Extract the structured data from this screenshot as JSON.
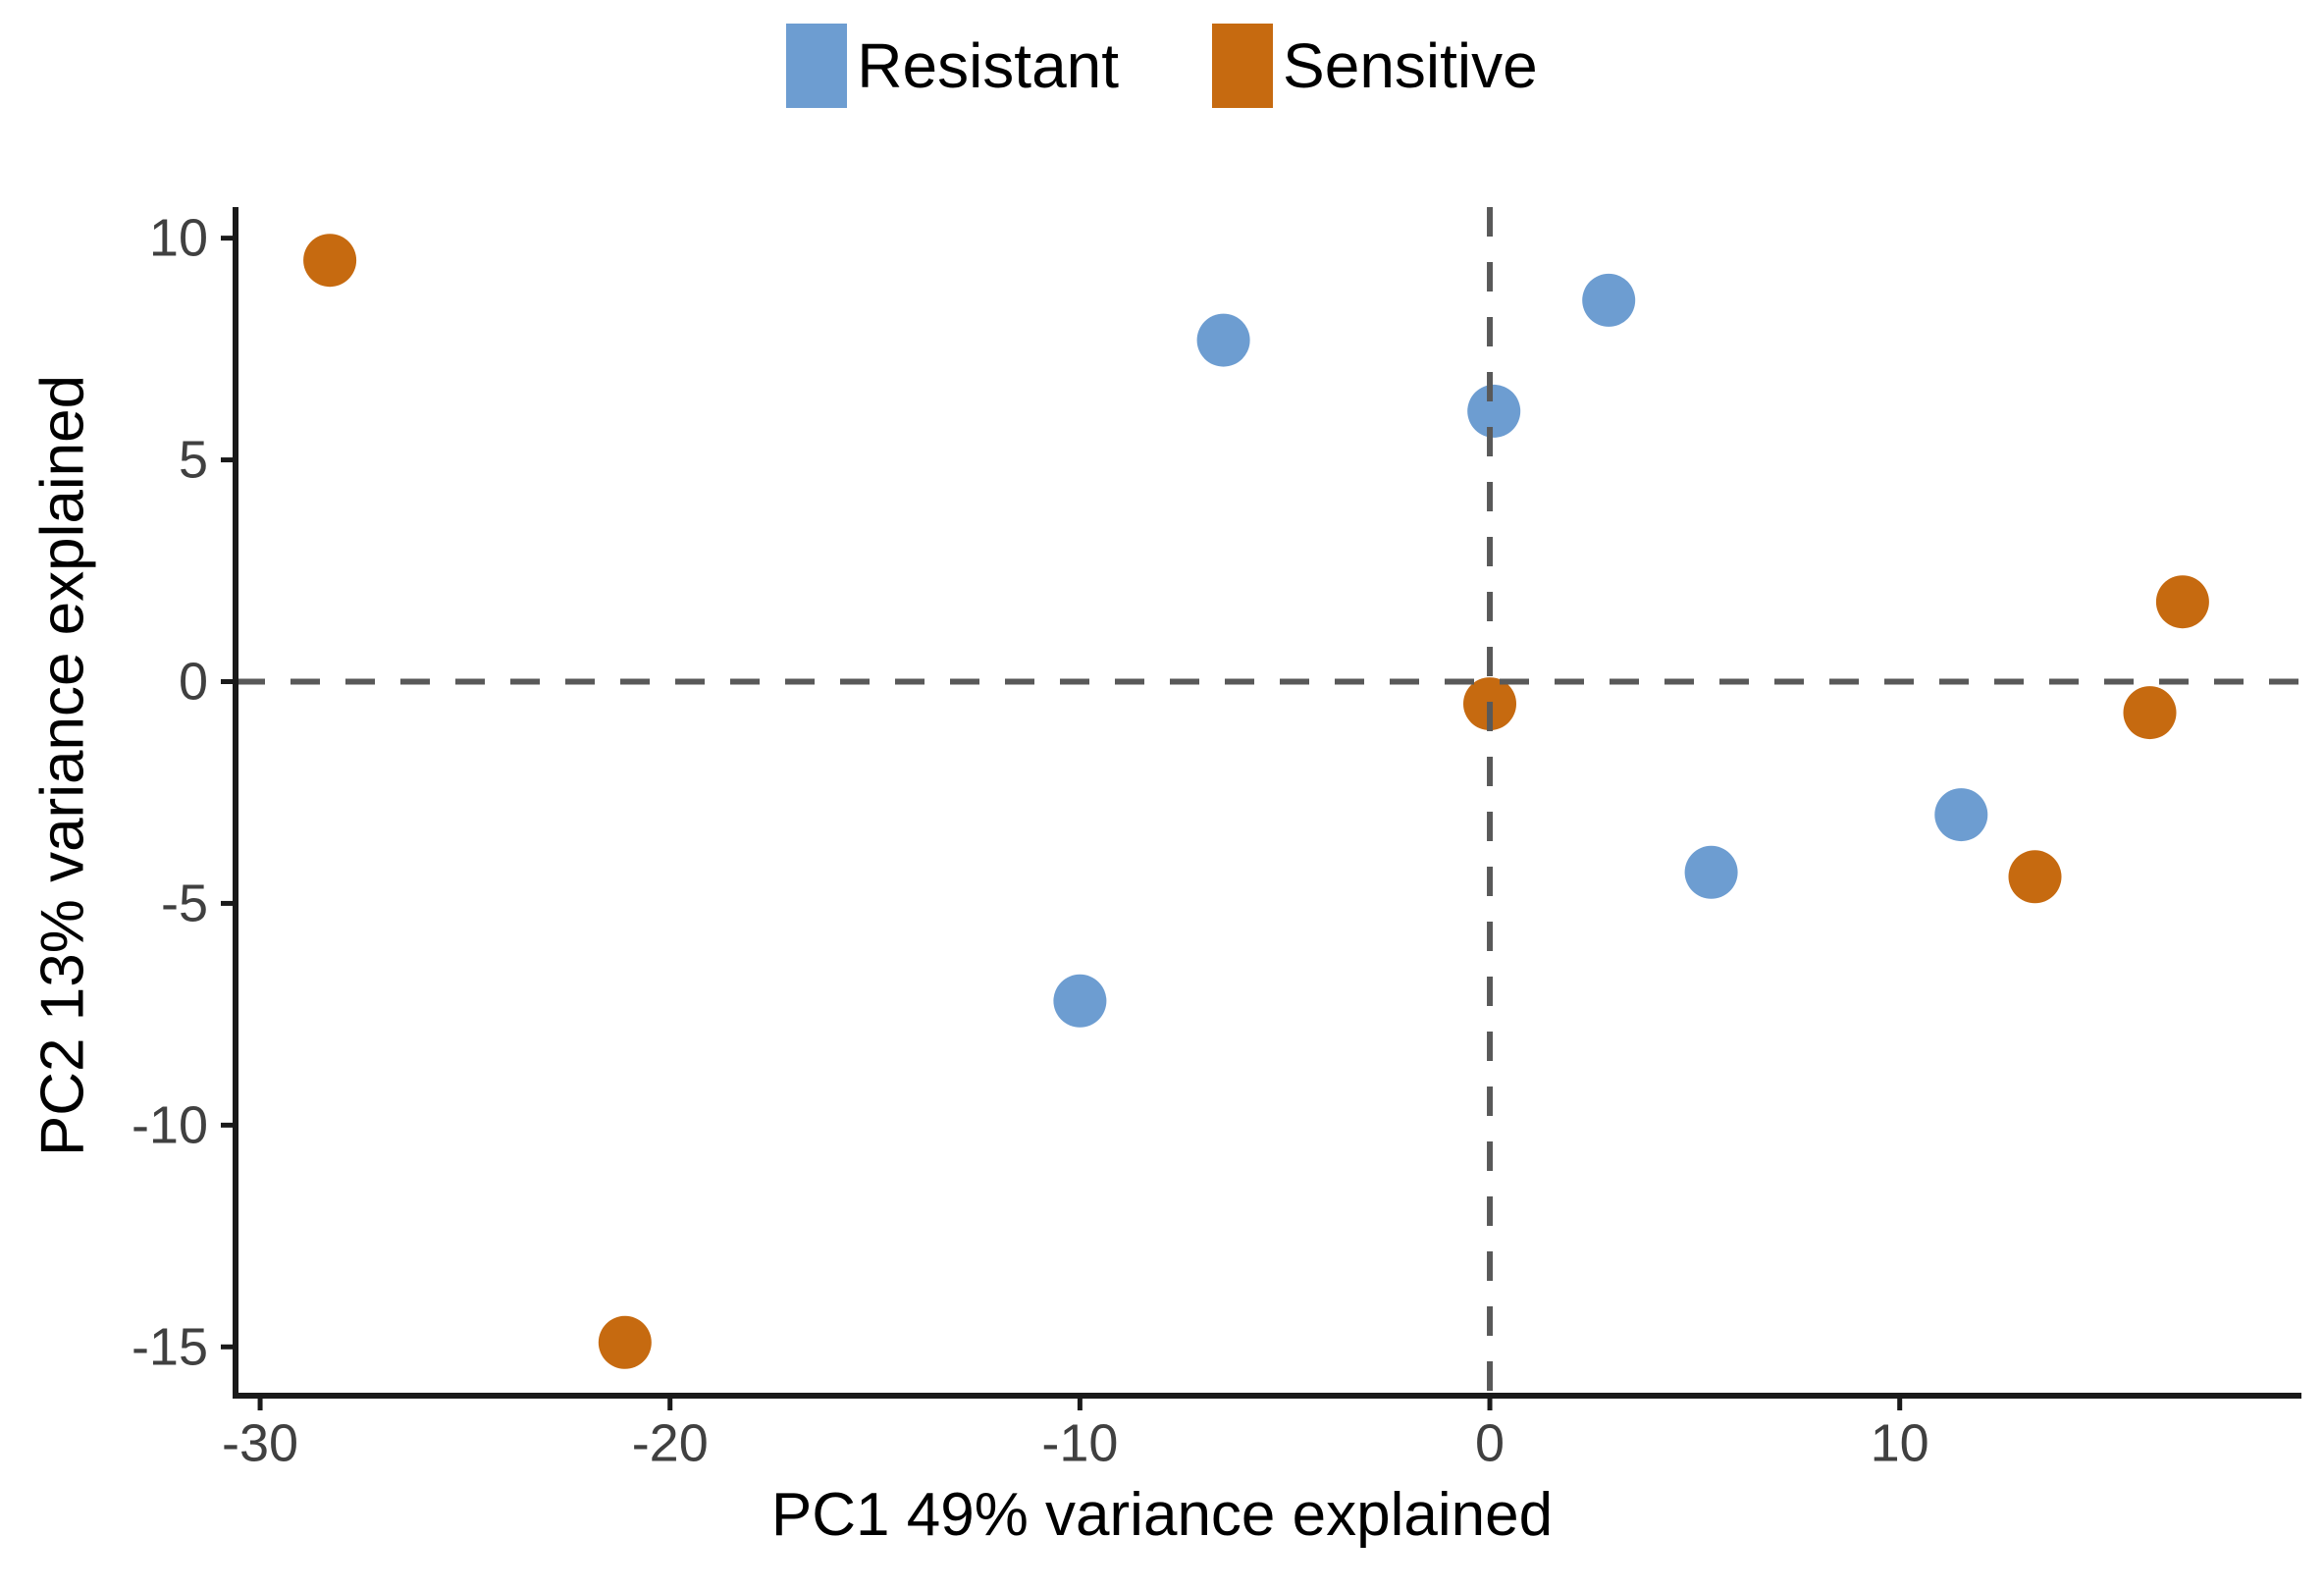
{
  "figure": {
    "background": "#ffffff"
  },
  "chart_data": {
    "type": "scatter",
    "title": "",
    "xlabel": "PC1 49% variance explained",
    "ylabel": "PC2 13% variance explained",
    "xlim": [
      -30.6,
      19.8
    ],
    "ylim": [
      -16.1,
      10.7
    ],
    "xticks": [
      -30,
      -20,
      -10,
      0,
      10
    ],
    "yticks": [
      10,
      5,
      0,
      -5,
      -10,
      -15
    ],
    "grid": false,
    "legend_position": "top-center",
    "axis_color": "#1a1a1a",
    "tick_label_color": "#404040",
    "reference_lines": {
      "vertical_x": 0,
      "horizontal_y": 0,
      "style": "dashed",
      "color": "#595959"
    },
    "series": [
      {
        "name": "Resistant",
        "color": "#6d9dd1",
        "points": [
          [
            -6.5,
            7.7
          ],
          [
            0.1,
            6.1
          ],
          [
            2.9,
            8.6
          ],
          [
            5.4,
            -4.3
          ],
          [
            11.5,
            -3.0
          ],
          [
            -10.0,
            -7.2
          ]
        ]
      },
      {
        "name": "Sensitive",
        "color": "#c66a10",
        "points": [
          [
            -28.3,
            9.5
          ],
          [
            -21.1,
            -14.9
          ],
          [
            0.0,
            -0.5
          ],
          [
            13.3,
            -4.4
          ],
          [
            16.1,
            -0.7
          ],
          [
            16.9,
            1.8
          ]
        ]
      }
    ]
  }
}
